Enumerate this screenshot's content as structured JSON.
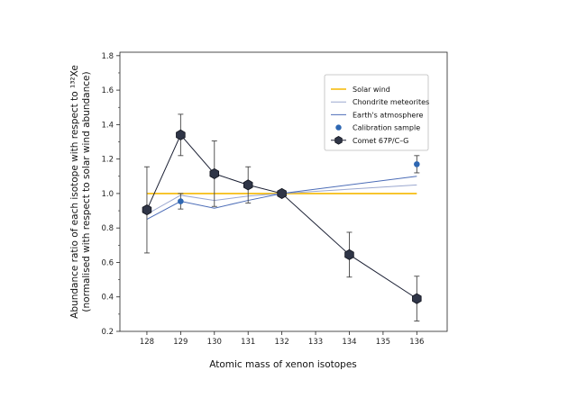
{
  "chart_data": {
    "type": "line",
    "xlabel": "Atomic mass of xenon isotopes",
    "ylabel_line1": "Abundance ratio of each isotope with respect to ¹³²Xe",
    "ylabel_line2": "(normalised with respect to solar wind abundance)",
    "x_ticks": [
      128,
      129,
      130,
      131,
      132,
      133,
      134,
      135,
      136
    ],
    "y_ticks": [
      0.2,
      0.4,
      0.6,
      0.8,
      1.0,
      1.2,
      1.4,
      1.6,
      1.8
    ],
    "y_tick_labels": [
      "0.2",
      "0.4",
      "0.6",
      "0.8",
      "1.0",
      "1.2",
      "1.4",
      "1.6",
      "1.8"
    ],
    "xlim": [
      127.2,
      136.9
    ],
    "ylim": [
      0.2,
      1.82
    ],
    "legend_position": "top-right",
    "series": [
      {
        "name": "Solar wind",
        "kind": "line",
        "color": "#f5b800",
        "x": [
          128,
          136
        ],
        "y": [
          1.0,
          1.0
        ]
      },
      {
        "name": "Chondrite meteorites",
        "kind": "line",
        "color": "#9aa7cf",
        "x": [
          128,
          129,
          130,
          131,
          132,
          136
        ],
        "y": [
          0.88,
          0.99,
          0.96,
          0.985,
          1.0,
          1.05
        ]
      },
      {
        "name": "Earth's atmosphere",
        "kind": "line",
        "color": "#4b6cb7",
        "x": [
          128,
          129,
          130,
          131,
          132,
          136
        ],
        "y": [
          0.85,
          0.955,
          0.915,
          0.96,
          1.0,
          1.1
        ]
      },
      {
        "name": "Calibration sample",
        "kind": "points",
        "color": "#2e67b2",
        "x": [
          129,
          136
        ],
        "y": [
          0.955,
          1.17
        ],
        "err": [
          0.045,
          0.05
        ]
      },
      {
        "name": "Comet 67P/C–G",
        "kind": "line-markers",
        "color": "#1a1f33",
        "marker_color": "#2f3547",
        "x": [
          128,
          129,
          130,
          131,
          132,
          134,
          136
        ],
        "y": [
          0.905,
          1.34,
          1.115,
          1.05,
          1.0,
          0.645,
          0.39
        ],
        "err": [
          0.25,
          0.12,
          0.19,
          0.105,
          0.0,
          0.13,
          0.13
        ]
      }
    ]
  }
}
